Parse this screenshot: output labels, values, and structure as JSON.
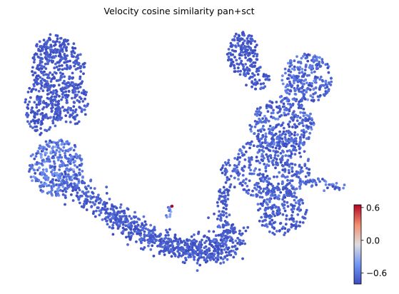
{
  "chart_data": {
    "type": "scatter",
    "title": "Velocity cosine similarity pan+sct",
    "axes_visible": false,
    "colormap": "coolwarm",
    "colors": {
      "low": "#3b4cc0",
      "mid": "#dddddd",
      "high": "#b40426",
      "background": "#ffffff"
    },
    "colorbar": {
      "position": "right",
      "range": [
        -0.8,
        0.65
      ],
      "ticks": [
        0.6,
        0.0,
        -0.6
      ],
      "tick_labels": [
        "0.6",
        "0.0",
        "−0.6"
      ]
    },
    "highlighted_point": {
      "value": 0.65
    }
  }
}
